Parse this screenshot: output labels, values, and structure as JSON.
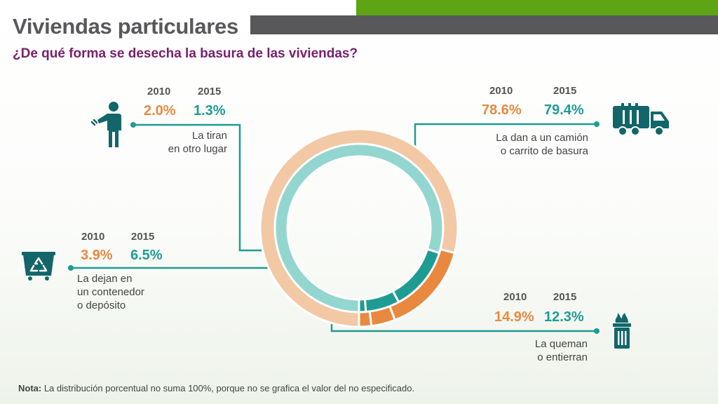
{
  "title": "Viviendas particulares",
  "subtitle": "¿De qué forma se desecha la basura de las viviendas?",
  "note_label": "Nota:",
  "note_text": " La distribución porcentual no suma 100%, porque no se grafica el valor del no especificado.",
  "colors": {
    "series_2010": "#e8893f",
    "series_2015": "#1e9c94",
    "ring_2010_light": "#f3c8a5",
    "ring_2015_light": "#93d6cf",
    "accent_green": "#5fa414",
    "header_gray": "#58585a",
    "subtitle_purple": "#7a1f6b",
    "icon_teal": "#12666a"
  },
  "chart_data": {
    "type": "donut",
    "title": "¿De qué forma se desecha la basura de las viviendas?",
    "years": [
      "2010",
      "2015"
    ],
    "categories": [
      "La dan a un camión o carrito de basura",
      "La queman o entierran",
      "La dejan en un contenedor o depósito",
      "La tiran en otro lugar"
    ],
    "series": [
      {
        "name": "2010",
        "values": [
          78.6,
          14.9,
          3.9,
          2.0
        ]
      },
      {
        "name": "2015",
        "values": [
          79.4,
          12.3,
          6.5,
          1.3
        ]
      }
    ],
    "unit": "%"
  },
  "callouts": {
    "truck": {
      "year1": "2010",
      "year2": "2015",
      "v2010": "78.6%",
      "v2015": "79.4%",
      "label1": "La dan a un camión",
      "label2": "o carrito de basura",
      "icon": "garbage-truck-icon"
    },
    "burn": {
      "year1": "2010",
      "year2": "2015",
      "v2010": "14.9%",
      "v2015": "12.3%",
      "label1": "La queman",
      "label2": "o entierran",
      "icon": "burning-bin-icon"
    },
    "container": {
      "year1": "2010",
      "year2": "2015",
      "v2010": "3.9%",
      "v2015": "6.5%",
      "label1": "La dejan en",
      "label2": "un contenedor",
      "label3": "o depósito",
      "icon": "recycle-container-icon"
    },
    "throw": {
      "year1": "2010",
      "year2": "2015",
      "v2010": "2.0%",
      "v2015": "1.3%",
      "label1": "La tiran",
      "label2": "en otro lugar",
      "icon": "person-throwing-icon"
    }
  }
}
